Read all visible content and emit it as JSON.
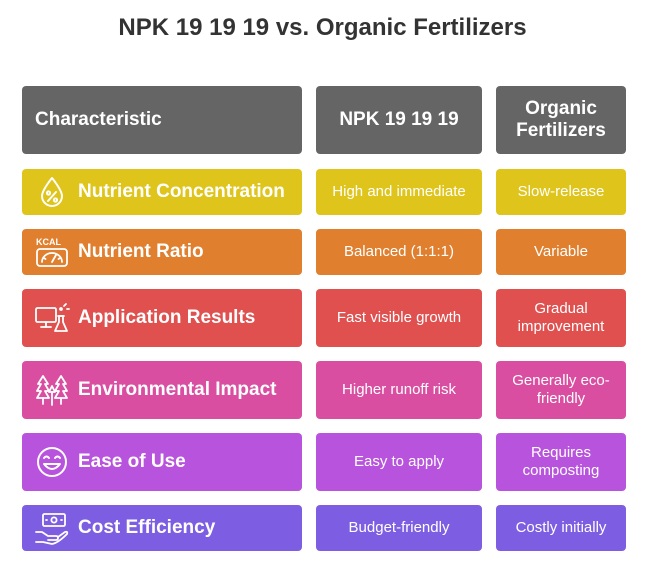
{
  "title": "NPK 19 19 19 vs. Organic Fertilizers",
  "headers": {
    "characteristic": "Characteristic",
    "npk": "NPK 19 19 19",
    "organic": "Organic Fertilizers"
  },
  "rows": [
    {
      "characteristic": "Nutrient Concentration",
      "icon": "nutrient-drop-percent-icon",
      "npk": "High and immediate",
      "organic": "Slow-release",
      "color": "#dfc51b"
    },
    {
      "characteristic": "Nutrient Ratio",
      "icon": "kcal-scale-icon",
      "npk": "Balanced (1:1:1)",
      "organic": "Variable",
      "color": "#e07f2e"
    },
    {
      "characteristic": "Application Results",
      "icon": "computer-flask-icon",
      "npk": "Fast visible growth",
      "organic": "Gradual improvement",
      "color": "#e0504f"
    },
    {
      "characteristic": "Environmental Impact",
      "icon": "trees-icon",
      "npk": "Higher runoff risk",
      "organic": "Generally eco-friendly",
      "color": "#da4ea1"
    },
    {
      "characteristic": "Ease of Use",
      "icon": "smiley-face-icon",
      "npk": "Easy to apply",
      "organic": "Requires composting",
      "color": "#b853dd"
    },
    {
      "characteristic": "Cost Efficiency",
      "icon": "hand-money-icon",
      "npk": "Budget-friendly",
      "organic": "Costly initially",
      "color": "#7d5ee2"
    }
  ]
}
